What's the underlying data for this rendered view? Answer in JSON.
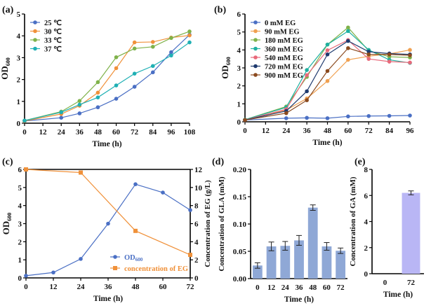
{
  "chart_data": [
    {
      "panel": "(a)",
      "type": "line",
      "xlabel": "Time (h)",
      "ylabel": "OD",
      "ylabel_sub": "600",
      "x": [
        0,
        24,
        36,
        48,
        60,
        72,
        84,
        96,
        108
      ],
      "xticks": [
        0,
        12,
        24,
        36,
        48,
        60,
        72,
        84,
        96,
        108
      ],
      "xlim": [
        0,
        108
      ],
      "ylim": [
        0,
        5
      ],
      "yticks": [
        0,
        1,
        2,
        3,
        4,
        5
      ],
      "legend": "top-left",
      "grid": false,
      "series": [
        {
          "name": "25 ℃",
          "color": "#4a6fc4",
          "values": [
            0.1,
            0.25,
            0.45,
            0.73,
            1.12,
            1.67,
            2.33,
            3.25,
            4.05
          ]
        },
        {
          "name": "30 ℃",
          "color": "#f0913a",
          "values": [
            0.1,
            0.42,
            0.8,
            1.4,
            2.52,
            3.7,
            3.72,
            3.92,
            4.02
          ]
        },
        {
          "name": "33 ℃",
          "color": "#7fb24a",
          "values": [
            0.12,
            0.53,
            1.02,
            1.88,
            3.02,
            3.42,
            3.5,
            3.9,
            4.2
          ]
        },
        {
          "name": "37 ℃",
          "color": "#1fb0b4",
          "values": [
            0.12,
            0.5,
            0.85,
            1.18,
            1.73,
            2.27,
            2.62,
            3.1,
            3.7
          ]
        }
      ]
    },
    {
      "panel": "(b)",
      "type": "line",
      "xlabel": "Time (h)",
      "ylabel": "OD",
      "ylabel_sub": "600",
      "x": [
        0,
        24,
        36,
        48,
        60,
        72,
        84,
        96
      ],
      "xticks": [
        0,
        12,
        24,
        36,
        48,
        60,
        72,
        84,
        96
      ],
      "xlim": [
        0,
        96
      ],
      "ylim": [
        0,
        6
      ],
      "yticks": [
        0,
        1,
        2,
        3,
        4,
        5,
        6
      ],
      "legend": "top-left",
      "grid": false,
      "series": [
        {
          "name": "0 mM EG",
          "color": "#4a6fc4",
          "values": [
            0.1,
            0.2,
            0.22,
            0.2,
            0.3,
            0.32,
            0.33,
            0.35
          ]
        },
        {
          "name": "90 mM EG",
          "color": "#f0a050",
          "values": [
            0.1,
            0.65,
            1.3,
            2.27,
            3.45,
            3.65,
            3.78,
            4.0
          ]
        },
        {
          "name": "180 mM EG",
          "color": "#7fb24a",
          "values": [
            0.12,
            0.85,
            2.5,
            4.3,
            5.25,
            3.95,
            3.62,
            3.58
          ]
        },
        {
          "name": "360 mM EG",
          "color": "#1fb0a0",
          "values": [
            0.12,
            0.8,
            2.88,
            4.3,
            5.05,
            4.0,
            3.45,
            3.28
          ]
        },
        {
          "name": "540 mM EG",
          "color": "#e8697a",
          "values": [
            0.1,
            0.7,
            2.6,
            3.98,
            4.55,
            3.5,
            3.35,
            3.3
          ]
        },
        {
          "name": "720 mM EG",
          "color": "#1e3a6e",
          "values": [
            0.1,
            0.6,
            1.7,
            3.75,
            4.5,
            3.9,
            3.8,
            3.75
          ]
        },
        {
          "name": "900 mM EG",
          "color": "#8b4a1e",
          "values": [
            0.1,
            0.48,
            1.2,
            2.83,
            4.1,
            3.75,
            3.75,
            3.7
          ]
        }
      ]
    },
    {
      "panel": "(c)",
      "type": "line",
      "xlabel": "Time (h)",
      "ylabel": "OD",
      "ylabel_sub": "600",
      "y2label": "Concentration of EG (g/L)",
      "xticks": [
        0,
        12,
        24,
        36,
        48,
        60,
        72
      ],
      "xlim": [
        0,
        72
      ],
      "ylim": [
        0,
        6
      ],
      "yticks": [
        0,
        1,
        2,
        3,
        4,
        5,
        6
      ],
      "y2lim": [
        0,
        12
      ],
      "y2ticks": [
        0,
        2,
        4,
        6,
        8,
        10,
        12
      ],
      "legend": "bottom-right",
      "grid": false,
      "series": [
        {
          "name": "OD",
          "name_sub": "600",
          "color": "#4a6fc4",
          "axis": "left",
          "marker": "circle",
          "x": [
            0,
            12,
            24,
            36,
            48,
            60,
            72
          ],
          "values": [
            0.12,
            0.3,
            1.05,
            3.0,
            5.18,
            4.72,
            3.75
          ]
        },
        {
          "name": "concentration of EG",
          "color": "#f0913a",
          "axis": "right",
          "marker": "square",
          "x": [
            0,
            24,
            48,
            72
          ],
          "values": [
            12,
            11.65,
            5.2,
            2.55
          ]
        }
      ]
    },
    {
      "panel": "(d)",
      "type": "bar",
      "xlabel": "Time (h)",
      "ylabel": "Concentration of GLA (mM)",
      "categories": [
        "0",
        "12",
        "24",
        "36",
        "48",
        "60",
        "72"
      ],
      "values": [
        0.024,
        0.059,
        0.06,
        0.07,
        0.13,
        0.059,
        0.051
      ],
      "errors": [
        0.005,
        0.008,
        0.008,
        0.009,
        0.005,
        0.007,
        0.005
      ],
      "ylim": [
        0,
        0.2
      ],
      "yticks": [
        "0.00",
        "0.05",
        "0.10",
        "0.15",
        "0.20"
      ],
      "color": "#8fa8d6"
    },
    {
      "panel": "(e)",
      "type": "bar",
      "xlabel": "Time (h)",
      "ylabel": "Concentration of GA (mM)",
      "categories": [
        "0",
        "72"
      ],
      "values": [
        0,
        6.2
      ],
      "errors": [
        0,
        0.15
      ],
      "ylim": [
        0,
        8
      ],
      "yticks": [
        "0",
        "2",
        "4",
        "6",
        "8"
      ],
      "color": "#b9b6f5"
    }
  ]
}
